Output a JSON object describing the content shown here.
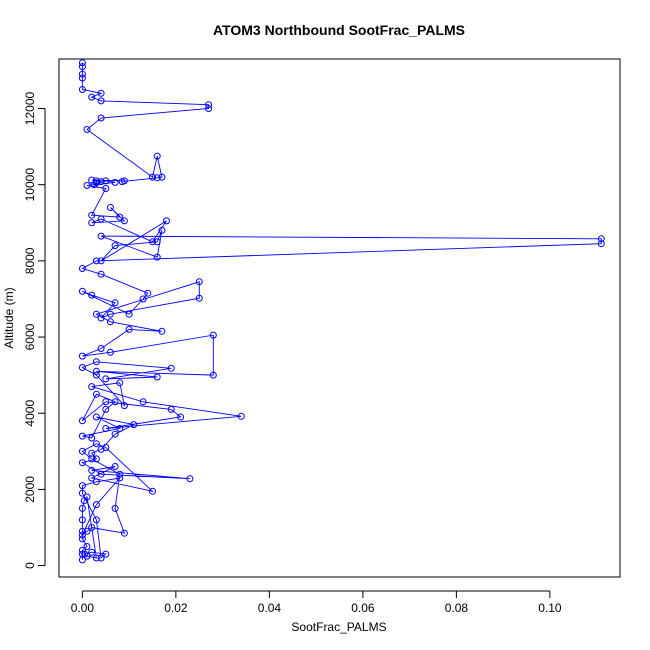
{
  "chart_data": {
    "type": "scatter",
    "title": "ATOM3 Northbound SootFrac_PALMS",
    "xlabel": "SootFrac_PALMS",
    "ylabel": "Altitude (m)",
    "xlim": [
      -0.005,
      0.115
    ],
    "ylim": [
      -300,
      13300
    ],
    "xticks": [
      0.0,
      0.02,
      0.04,
      0.06,
      0.08,
      0.1
    ],
    "xtick_labels": [
      "0.00",
      "0.02",
      "0.04",
      "0.06",
      "0.08",
      "0.10"
    ],
    "yticks": [
      0,
      2000,
      4000,
      6000,
      8000,
      10000,
      12000
    ],
    "ytick_labels": [
      "0",
      "2000",
      "4000",
      "6000",
      "8000",
      "10000",
      "12000"
    ],
    "grid": false,
    "color": "#0000ff",
    "marker": "open-circle",
    "connected": true,
    "series": [
      {
        "x": [
          0,
          0,
          0,
          0.001,
          0,
          0,
          0,
          0,
          0.0004,
          0.001,
          0.003,
          0.001,
          0.0005,
          0.002,
          0.005,
          0.004,
          0.003,
          0,
          0,
          0.003,
          0.008,
          0.003,
          0,
          0.001,
          0.002,
          0.009,
          0.007,
          0.008,
          0.002,
          0,
          0.003,
          0.005,
          0.015,
          0.002,
          0.007,
          0.002,
          0.023,
          0.004,
          0,
          0.003,
          0.002,
          0.004,
          0.007,
          0.011,
          0.003,
          0.008,
          0,
          0.002,
          0.005,
          0.007,
          0.003,
          0,
          0.005,
          0.019,
          0.021,
          0.005,
          0.034,
          0.013,
          0.002,
          0.008,
          0.009,
          0.003,
          0,
          0.003,
          0.019,
          0.005,
          0.016,
          0.003,
          0.028,
          0.028,
          0.006,
          0,
          0.004,
          0.01,
          0.017,
          0.006,
          0.003,
          0.025,
          0.025,
          0.006,
          0.004,
          0.007,
          0.002,
          0,
          0.01,
          0.013,
          0.014,
          0.004,
          0,
          0.003,
          0.111,
          0.111,
          0.004,
          0.016,
          0.017,
          0.016,
          0.007,
          0.004,
          0.018,
          0.015,
          0.004,
          0.002,
          0.009,
          0.006,
          0.008,
          0.002,
          0.005,
          0.001,
          0.007,
          0.005,
          0.0025,
          0.003,
          0.003,
          0.004,
          0.002,
          0.009,
          0.0085,
          0.016,
          0.017,
          0.016,
          0.015,
          0.001,
          0.004,
          0.027,
          0.027,
          0.004,
          0.002,
          0.004,
          0,
          0,
          0,
          0,
          0
        ],
        "y": [
          150,
          300,
          400,
          500,
          700,
          900,
          1200,
          1500,
          1700,
          1800,
          200,
          250,
          300,
          350,
          300,
          200,
          1200,
          1900,
          2100,
          2200,
          2300,
          1600,
          800,
          900,
          1000,
          850,
          1500,
          2400,
          2800,
          3000,
          3200,
          3100,
          1950,
          2300,
          2600,
          2500,
          2280,
          2400,
          2700,
          2800,
          2950,
          3050,
          3450,
          3700,
          3900,
          3600,
          3400,
          3350,
          4100,
          4300,
          4500,
          3800,
          4300,
          4100,
          3900,
          3600,
          3920,
          4300,
          4700,
          4800,
          4200,
          5000,
          5200,
          5350,
          5180,
          4900,
          4950,
          5100,
          5000,
          6050,
          5600,
          5500,
          5700,
          6200,
          6150,
          6400,
          6600,
          7450,
          7020,
          6600,
          6500,
          6900,
          7100,
          7200,
          6600,
          7000,
          7150,
          7650,
          7800,
          8000,
          8450,
          8580,
          8650,
          8100,
          8800,
          8500,
          8400,
          8000,
          9050,
          8500,
          9100,
          9000,
          9050,
          9400,
          9150,
          9200,
          9900,
          9980,
          10060,
          10100,
          10000,
          10050,
          10100,
          10080,
          10120,
          10100,
          10080,
          10180,
          10200,
          10750,
          10200,
          11450,
          11750,
          12000,
          12100,
          12200,
          12300,
          12400,
          12500,
          12800,
          12900,
          13100,
          13200
        ]
      }
    ]
  }
}
